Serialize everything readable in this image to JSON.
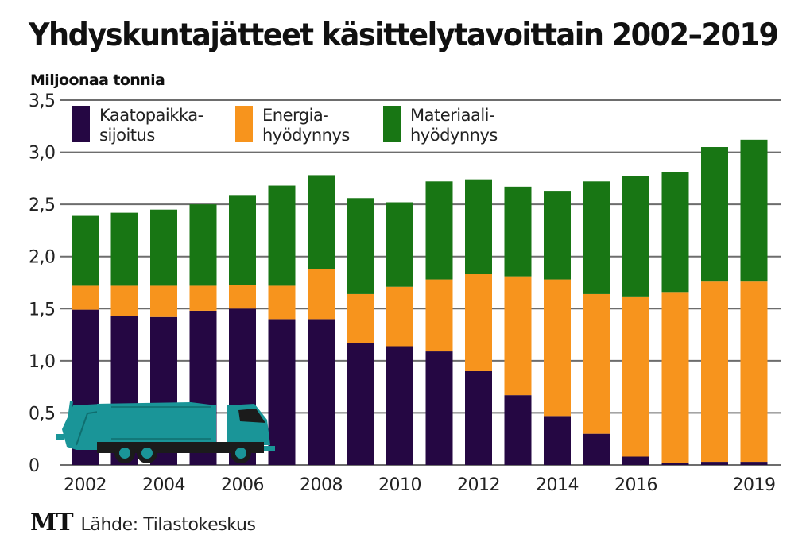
{
  "header": {
    "title": "Yhdyskuntajätteet käsittelytavoittain 2002–2019",
    "unit_label": "Miljoonaa tonnia"
  },
  "footer": {
    "logo": "MT",
    "source": "Lähde: Tilastokeskus"
  },
  "illustration": "garbage-truck",
  "chart_data": {
    "type": "bar",
    "stacked": true,
    "title": "Yhdyskuntajätteet käsittelytavoittain 2002–2019",
    "ylabel": "Miljoonaa tonnia",
    "xlabel": "",
    "ylim": [
      0,
      3.5
    ],
    "yticks": [
      0,
      0.5,
      1.0,
      1.5,
      2.0,
      2.5,
      3.0,
      3.5
    ],
    "ytick_labels": [
      "0",
      "0,5",
      "1,0",
      "1,5",
      "2,0",
      "2,5",
      "3,0",
      "3,5"
    ],
    "grid": true,
    "legend_position": "top",
    "categories": [
      "2002",
      "2003",
      "2004",
      "2005",
      "2006",
      "2007",
      "2008",
      "2009",
      "2010",
      "2011",
      "2012",
      "2013",
      "2014",
      "2015",
      "2016",
      "2017",
      "2018",
      "2019"
    ],
    "xtick_labels": [
      "2002",
      "",
      "2004",
      "",
      "2006",
      "",
      "2008",
      "",
      "2010",
      "",
      "2012",
      "",
      "2014",
      "",
      "2016",
      "",
      "",
      "2019"
    ],
    "series": [
      {
        "name": "Kaatopaikka-sijoitus",
        "legend_lines": [
          "Kaatopaikka-",
          "sijoitus"
        ],
        "color": "#250743",
        "values": [
          1.49,
          1.43,
          1.42,
          1.48,
          1.5,
          1.4,
          1.4,
          1.17,
          1.14,
          1.09,
          0.9,
          0.67,
          0.47,
          0.3,
          0.08,
          0.02,
          0.03,
          0.03
        ]
      },
      {
        "name": "Energia-hyödynnys",
        "legend_lines": [
          "Energia-",
          "hyödynnys"
        ],
        "color": "#f7941d",
        "values": [
          0.23,
          0.29,
          0.3,
          0.24,
          0.23,
          0.32,
          0.48,
          0.47,
          0.57,
          0.69,
          0.93,
          1.14,
          1.31,
          1.34,
          1.53,
          1.64,
          1.73,
          1.73
        ]
      },
      {
        "name": "Materiaali-hyödynnys",
        "legend_lines": [
          "Materiaali-",
          "hyödynnys"
        ],
        "color": "#187614",
        "values": [
          0.67,
          0.7,
          0.73,
          0.78,
          0.86,
          0.96,
          0.9,
          0.92,
          0.81,
          0.94,
          0.91,
          0.86,
          0.85,
          1.08,
          1.16,
          1.15,
          1.29,
          1.36
        ]
      }
    ],
    "totals": [
      2.39,
      2.42,
      2.45,
      2.5,
      2.59,
      2.68,
      2.78,
      2.56,
      2.52,
      2.72,
      2.74,
      2.67,
      2.63,
      2.72,
      2.77,
      2.81,
      3.05,
      3.12
    ]
  }
}
